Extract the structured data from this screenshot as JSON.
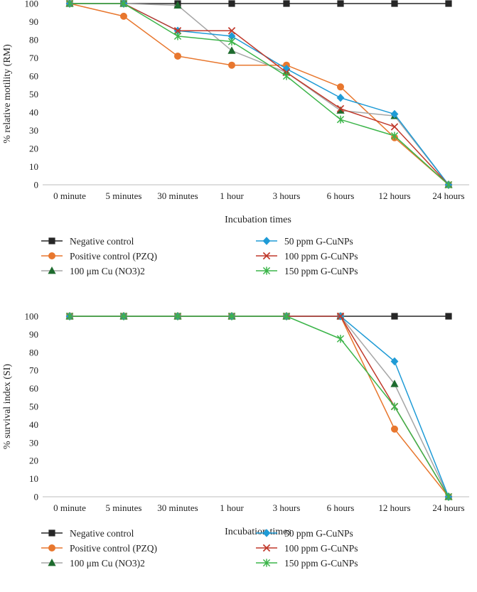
{
  "chart_data": [
    {
      "type": "line",
      "xlabel": "Incubation times",
      "ylabel": "% relative motility (RM)",
      "ylim": [
        0,
        100
      ],
      "yticks": [
        0,
        10,
        20,
        30,
        40,
        50,
        60,
        70,
        80,
        90,
        100
      ],
      "categories": [
        "0 minute",
        "5 minutes",
        "30 minutes",
        "1 hour",
        "3 hours",
        "6 hours",
        "12 hours",
        "24 hours"
      ],
      "series": [
        {
          "name": "Negative control",
          "color": "#262626",
          "marker": "square",
          "values": [
            100,
            100,
            100,
            100,
            100,
            100,
            100,
            100
          ]
        },
        {
          "name": "Positive control (PZQ)",
          "color": "#e8772e",
          "marker": "circle",
          "values": [
            100,
            93,
            71,
            66,
            66,
            54,
            26,
            0
          ]
        },
        {
          "name": "100 μm Cu (NO3)2",
          "color": "#a6a6a6",
          "markerColor": "#1e6b2e",
          "marker": "triangle",
          "values": [
            100,
            100,
            99,
            74,
            62,
            41,
            38,
            0
          ]
        },
        {
          "name": "50 ppm G-CuNPs",
          "color": "#1f9bd6",
          "marker": "diamond",
          "values": [
            100,
            100,
            85,
            82,
            64,
            48,
            39,
            0
          ]
        },
        {
          "name": "100 ppm G-CuNPs",
          "color": "#c0392b",
          "marker": "x",
          "values": [
            100,
            100,
            85,
            85,
            62,
            42,
            32,
            0
          ]
        },
        {
          "name": "150 ppm G-CuNPs",
          "color": "#3cb54a",
          "marker": "star",
          "values": [
            100,
            100,
            82,
            79,
            60,
            36,
            27,
            0
          ]
        }
      ]
    },
    {
      "type": "line",
      "xlabel": "Incubation times",
      "ylabel": "% survival index (SI)",
      "ylim": [
        0,
        100
      ],
      "yticks": [
        0,
        10,
        20,
        30,
        40,
        50,
        60,
        70,
        80,
        90,
        100
      ],
      "categories": [
        "0 minute",
        "5 minutes",
        "30 minutes",
        "1 hour",
        "3 hours",
        "6 hours",
        "12 hours",
        "24 hours"
      ],
      "series": [
        {
          "name": "Negative control",
          "color": "#262626",
          "marker": "square",
          "values": [
            100,
            100,
            100,
            100,
            100,
            100,
            100,
            100
          ]
        },
        {
          "name": "Positive control (PZQ)",
          "color": "#e8772e",
          "marker": "circle",
          "values": [
            100,
            100,
            100,
            100,
            100,
            100,
            37.5,
            0
          ]
        },
        {
          "name": "100 μm Cu (NO3)2",
          "color": "#a6a6a6",
          "markerColor": "#1e6b2e",
          "marker": "triangle",
          "values": [
            100,
            100,
            100,
            100,
            100,
            100,
            62.5,
            0
          ]
        },
        {
          "name": "50 ppm G-CuNPs",
          "color": "#1f9bd6",
          "marker": "diamond",
          "values": [
            100,
            100,
            100,
            100,
            100,
            100,
            75,
            0
          ]
        },
        {
          "name": "100 ppm G-CuNPs",
          "color": "#c0392b",
          "marker": "x",
          "values": [
            100,
            100,
            100,
            100,
            100,
            100,
            50,
            0
          ]
        },
        {
          "name": "150 ppm G-CuNPs",
          "color": "#3cb54a",
          "marker": "star",
          "values": [
            100,
            100,
            100,
            100,
            100,
            87.5,
            50,
            0
          ]
        }
      ]
    }
  ]
}
